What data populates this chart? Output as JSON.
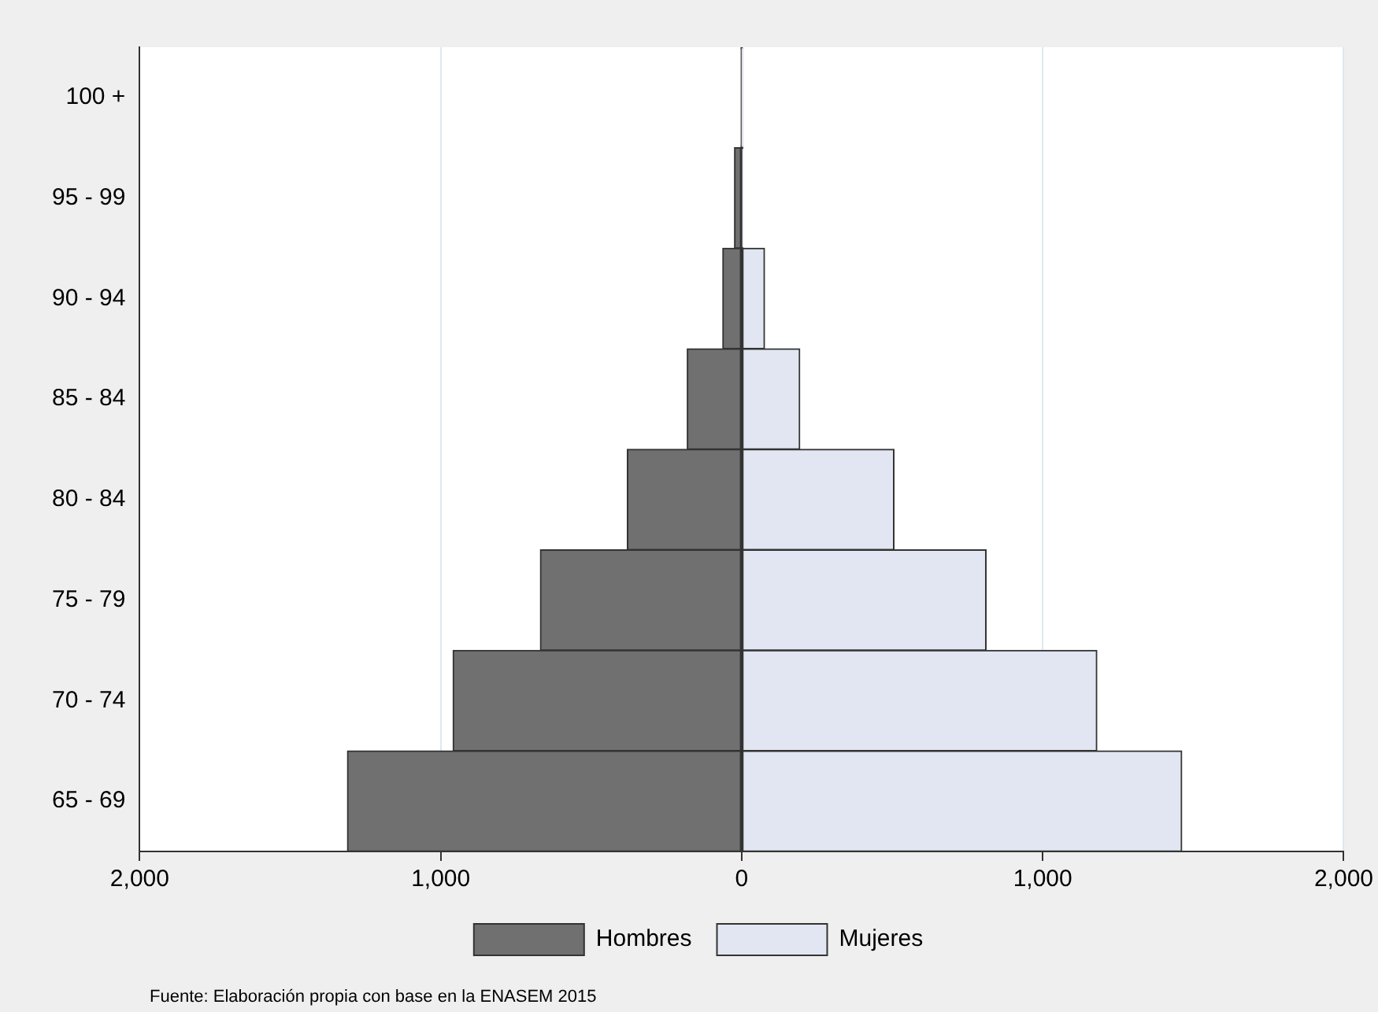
{
  "chart_data": {
    "type": "bar",
    "orientation": "horizontal",
    "stacked": true,
    "categories": [
      "100 +",
      "95 - 99",
      "90 - 94",
      "85 - 84",
      "80 - 84",
      "75 - 79",
      "70 - 74",
      "65 - 69"
    ],
    "series": [
      {
        "name": "Hombres",
        "color": "#707070",
        "values": [
          -2,
          -24,
          -63,
          -181,
          -380,
          -669,
          -959,
          -1310
        ]
      },
      {
        "name": "Mujeres",
        "color": "#e1e6f2",
        "values": [
          1,
          4,
          76,
          193,
          506,
          812,
          1180,
          1462
        ]
      }
    ],
    "xlim": [
      -2000,
      2000
    ],
    "xticks": [
      {
        "value": -2000,
        "label": "2,000"
      },
      {
        "value": -1000,
        "label": "1,000"
      },
      0,
      {
        "value": 1000,
        "label": "1,000"
      },
      {
        "value": 2000,
        "label": "2,000"
      }
    ],
    "grid": "x",
    "legend": "bottom",
    "annotations": [
      "Fuente: Elaboración propia con base en la ENASEM 2015"
    ]
  }
}
